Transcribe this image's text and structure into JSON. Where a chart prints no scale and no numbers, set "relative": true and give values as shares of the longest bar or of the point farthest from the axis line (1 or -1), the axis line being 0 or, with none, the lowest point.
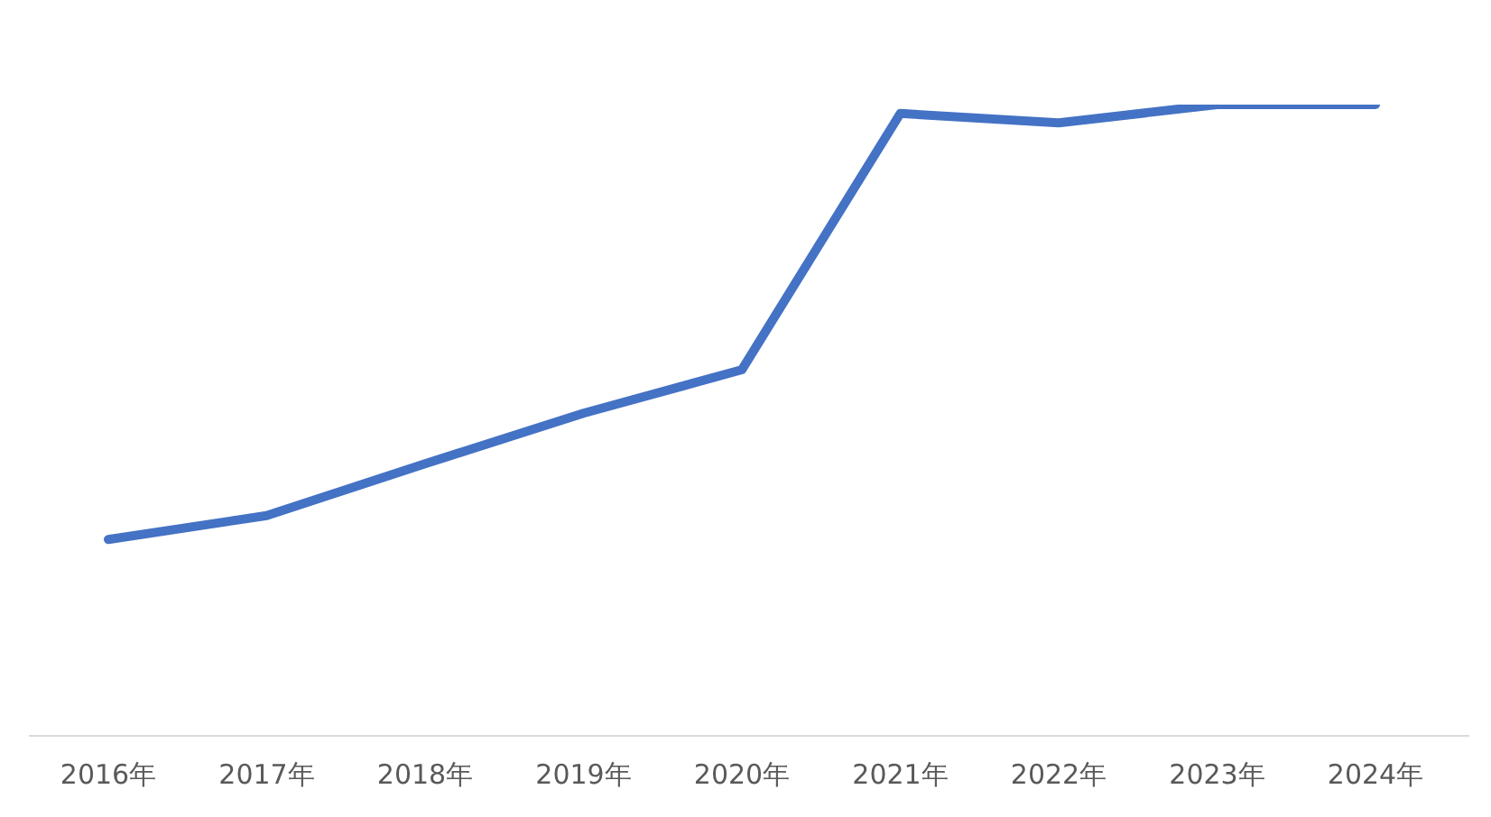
{
  "chart_data": {
    "type": "line",
    "relative": true,
    "categories": [
      "2016年",
      "2017年",
      "2018年",
      "2019年",
      "2020年",
      "2021年",
      "2022年",
      "2023年",
      "2024年"
    ],
    "series": [
      {
        "color": "#4472c4",
        "values": [
          0.311,
          0.349,
          0.431,
          0.511,
          0.58,
          0.986,
          0.971,
          1,
          1
        ]
      }
    ],
    "marker": "none",
    "line_style": "solid",
    "grid": false,
    "legend": false
  }
}
